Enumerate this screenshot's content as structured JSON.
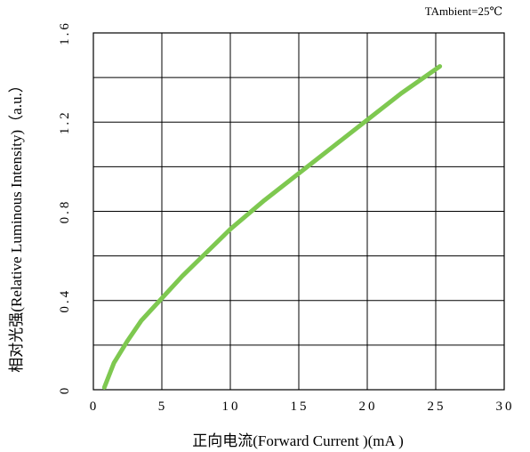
{
  "chart_data": {
    "type": "line",
    "condition_label": "TAmbient=25℃",
    "xlabel": "正向电流(Forward  Current )(mA )",
    "ylabel": "相对光强(Relative Luminous Intensity)（a.u.）",
    "xlim": [
      0,
      30
    ],
    "ylim": [
      0,
      1.6
    ],
    "x_ticks": [
      0,
      5,
      10,
      15,
      20,
      25,
      30
    ],
    "y_ticks": [
      0,
      0.4,
      0.8,
      1.2,
      1.6
    ],
    "x_tick_labels": [
      "0",
      "5",
      "10",
      "15",
      "20",
      "25",
      "30"
    ],
    "y_tick_labels": [
      "0",
      "0.4",
      "0.8",
      "1.2",
      "1.6"
    ],
    "grid": true,
    "line_color": "#7ec850",
    "series": [
      {
        "x": [
          0.8,
          1.5,
          2.5,
          3.5,
          5,
          6.5,
          8,
          10,
          12.5,
          15,
          17.5,
          20,
          22.5,
          25.3
        ],
        "y": [
          0.01,
          0.12,
          0.22,
          0.31,
          0.41,
          0.51,
          0.6,
          0.72,
          0.85,
          0.97,
          1.09,
          1.21,
          1.33,
          1.45
        ]
      }
    ]
  }
}
